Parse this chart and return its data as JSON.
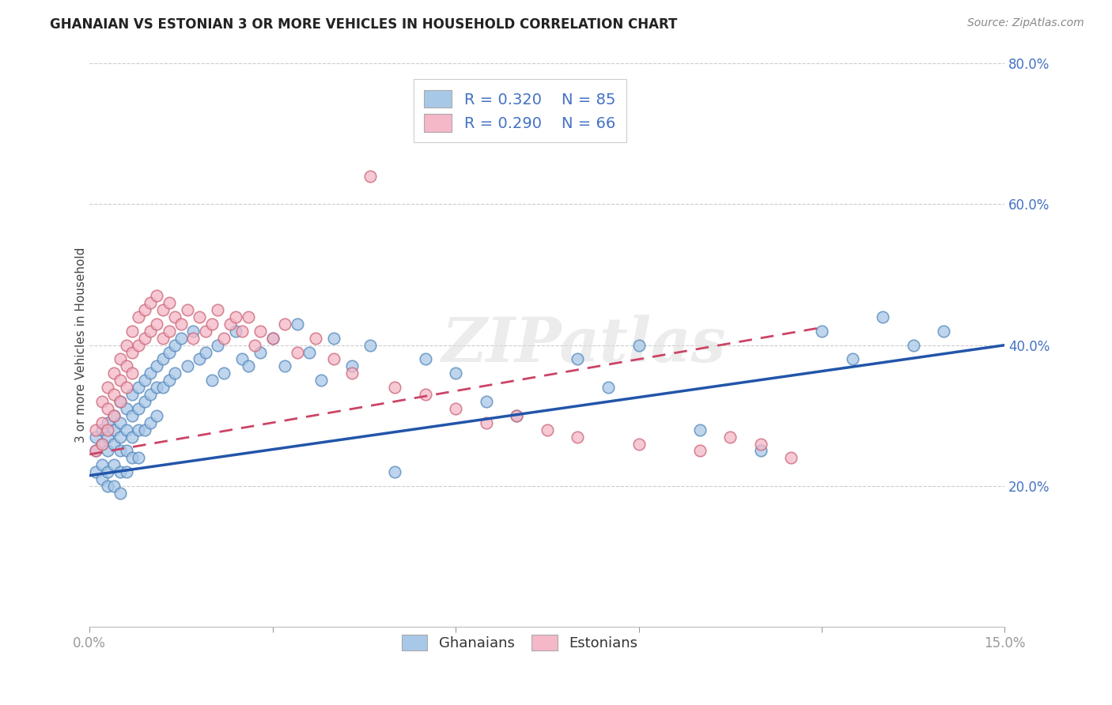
{
  "title": "GHANAIAN VS ESTONIAN 3 OR MORE VEHICLES IN HOUSEHOLD CORRELATION CHART",
  "source": "Source: ZipAtlas.com",
  "ylabel": "3 or more Vehicles in Household",
  "x_min": 0.0,
  "x_max": 0.15,
  "y_min": 0.0,
  "y_max": 0.8,
  "x_ticks": [
    0.0,
    0.03,
    0.06,
    0.09,
    0.12,
    0.15
  ],
  "x_tick_labels": [
    "0.0%",
    "",
    "",
    "",
    "",
    "15.0%"
  ],
  "y_ticks_right": [
    0.2,
    0.4,
    0.6,
    0.8
  ],
  "y_tick_labels_right": [
    "20.0%",
    "40.0%",
    "60.0%",
    "80.0%"
  ],
  "ghanaian_R": 0.32,
  "ghanaian_N": 85,
  "estonian_R": 0.29,
  "estonian_N": 66,
  "blue_scatter_face": "#a8c8e8",
  "blue_scatter_edge": "#5588bb",
  "pink_scatter_face": "#f4b8c8",
  "pink_scatter_edge": "#cc6677",
  "blue_line_color": "#2255aa",
  "pink_line_color": "#cc4466",
  "legend_color_blue": "#a8c8e8",
  "legend_color_pink": "#f4b8c8",
  "watermark": "ZIPatlas",
  "gh_trend_x0": 0.0,
  "gh_trend_y0": 0.215,
  "gh_trend_x1": 0.15,
  "gh_trend_y1": 0.4,
  "es_trend_x0": 0.0,
  "es_trend_y0": 0.245,
  "es_trend_x1": 0.12,
  "es_trend_y1": 0.425,
  "ghanaian_x": [
    0.001,
    0.001,
    0.001,
    0.002,
    0.002,
    0.002,
    0.002,
    0.003,
    0.003,
    0.003,
    0.003,
    0.003,
    0.004,
    0.004,
    0.004,
    0.004,
    0.004,
    0.005,
    0.005,
    0.005,
    0.005,
    0.005,
    0.005,
    0.006,
    0.006,
    0.006,
    0.006,
    0.007,
    0.007,
    0.007,
    0.007,
    0.008,
    0.008,
    0.008,
    0.008,
    0.009,
    0.009,
    0.009,
    0.01,
    0.01,
    0.01,
    0.011,
    0.011,
    0.011,
    0.012,
    0.012,
    0.013,
    0.013,
    0.014,
    0.014,
    0.015,
    0.016,
    0.017,
    0.018,
    0.019,
    0.02,
    0.021,
    0.022,
    0.024,
    0.025,
    0.026,
    0.028,
    0.03,
    0.032,
    0.034,
    0.036,
    0.038,
    0.04,
    0.043,
    0.046,
    0.05,
    0.055,
    0.06,
    0.065,
    0.07,
    0.08,
    0.085,
    0.09,
    0.1,
    0.11,
    0.12,
    0.125,
    0.13,
    0.135,
    0.14
  ],
  "ghanaian_y": [
    0.27,
    0.25,
    0.22,
    0.28,
    0.26,
    0.23,
    0.21,
    0.29,
    0.27,
    0.25,
    0.22,
    0.2,
    0.3,
    0.28,
    0.26,
    0.23,
    0.2,
    0.32,
    0.29,
    0.27,
    0.25,
    0.22,
    0.19,
    0.31,
    0.28,
    0.25,
    0.22,
    0.33,
    0.3,
    0.27,
    0.24,
    0.34,
    0.31,
    0.28,
    0.24,
    0.35,
    0.32,
    0.28,
    0.36,
    0.33,
    0.29,
    0.37,
    0.34,
    0.3,
    0.38,
    0.34,
    0.39,
    0.35,
    0.4,
    0.36,
    0.41,
    0.37,
    0.42,
    0.38,
    0.39,
    0.35,
    0.4,
    0.36,
    0.42,
    0.38,
    0.37,
    0.39,
    0.41,
    0.37,
    0.43,
    0.39,
    0.35,
    0.41,
    0.37,
    0.4,
    0.22,
    0.38,
    0.36,
    0.32,
    0.3,
    0.38,
    0.34,
    0.4,
    0.28,
    0.25,
    0.42,
    0.38,
    0.44,
    0.4,
    0.42
  ],
  "estonian_x": [
    0.001,
    0.001,
    0.002,
    0.002,
    0.002,
    0.003,
    0.003,
    0.003,
    0.004,
    0.004,
    0.004,
    0.005,
    0.005,
    0.005,
    0.006,
    0.006,
    0.006,
    0.007,
    0.007,
    0.007,
    0.008,
    0.008,
    0.009,
    0.009,
    0.01,
    0.01,
    0.011,
    0.011,
    0.012,
    0.012,
    0.013,
    0.013,
    0.014,
    0.015,
    0.016,
    0.017,
    0.018,
    0.019,
    0.02,
    0.021,
    0.022,
    0.023,
    0.024,
    0.025,
    0.026,
    0.027,
    0.028,
    0.03,
    0.032,
    0.034,
    0.037,
    0.04,
    0.043,
    0.046,
    0.05,
    0.055,
    0.06,
    0.065,
    0.07,
    0.075,
    0.08,
    0.09,
    0.1,
    0.105,
    0.11,
    0.115
  ],
  "estonian_y": [
    0.28,
    0.25,
    0.32,
    0.29,
    0.26,
    0.34,
    0.31,
    0.28,
    0.36,
    0.33,
    0.3,
    0.38,
    0.35,
    0.32,
    0.4,
    0.37,
    0.34,
    0.42,
    0.39,
    0.36,
    0.44,
    0.4,
    0.45,
    0.41,
    0.46,
    0.42,
    0.47,
    0.43,
    0.45,
    0.41,
    0.46,
    0.42,
    0.44,
    0.43,
    0.45,
    0.41,
    0.44,
    0.42,
    0.43,
    0.45,
    0.41,
    0.43,
    0.44,
    0.42,
    0.44,
    0.4,
    0.42,
    0.41,
    0.43,
    0.39,
    0.41,
    0.38,
    0.36,
    0.64,
    0.34,
    0.33,
    0.31,
    0.29,
    0.3,
    0.28,
    0.27,
    0.26,
    0.25,
    0.27,
    0.26,
    0.24
  ]
}
